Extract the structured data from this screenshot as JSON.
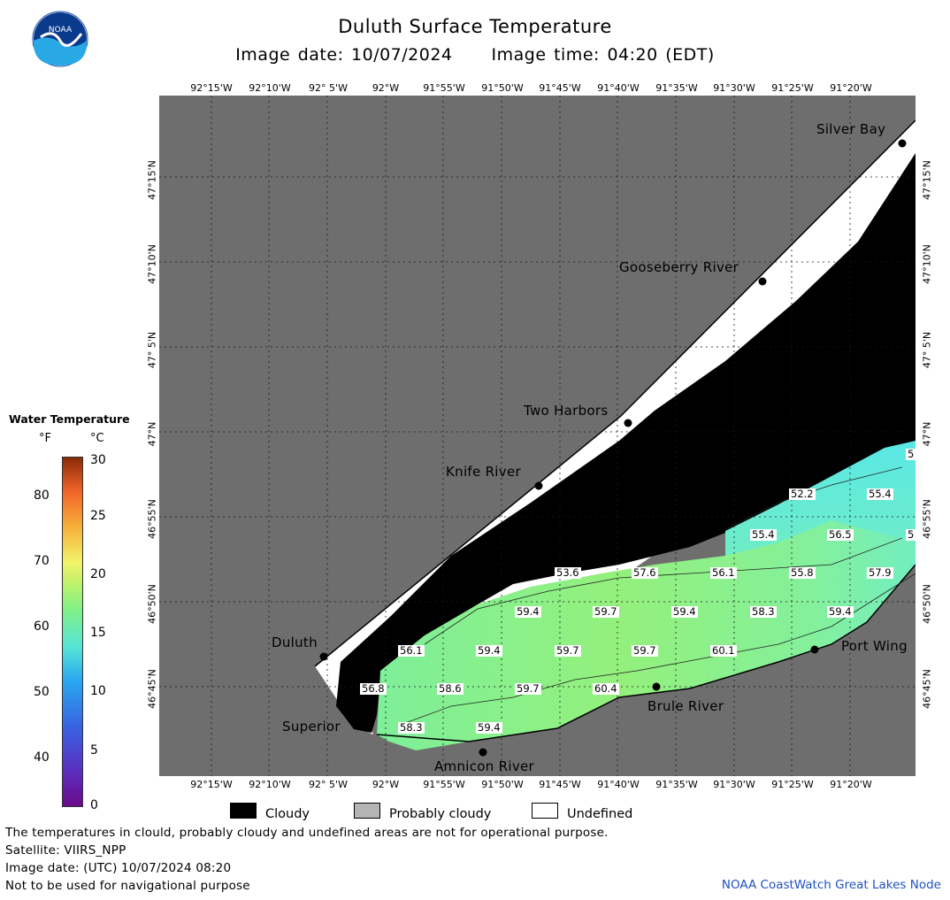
{
  "header": {
    "title": "Duluth Surface Temperature",
    "image_date": "Image date: 10/07/2024",
    "image_time": "Image time: 04:20 (EDT)"
  },
  "logo": {
    "text": "NOAA",
    "icon": "noaa-logo-icon"
  },
  "map": {
    "lon_labels": [
      "92°15'W",
      "92°10'W",
      "92° 5'W",
      "92°W",
      "91°55'W",
      "91°50'W",
      "91°45'W",
      "91°40'W",
      "91°35'W",
      "91°30'W",
      "91°25'W",
      "91°20'W"
    ],
    "lat_labels": [
      "47°15'N",
      "47°10'N",
      "47° 5'N",
      "47°N",
      "46°55'N",
      "46°50'N",
      "46°45'N"
    ],
    "places": [
      {
        "name": "Silver Bay"
      },
      {
        "name": "Gooseberry River"
      },
      {
        "name": "Two Harbors"
      },
      {
        "name": "Knife River"
      },
      {
        "name": "Duluth"
      },
      {
        "name": "Superior"
      },
      {
        "name": "Amnicon River"
      },
      {
        "name": "Brule River"
      },
      {
        "name": "Port Wing"
      }
    ],
    "temps": [
      "52.2",
      "55.4",
      "55.4",
      "56.5",
      "5",
      "5",
      "53.6",
      "57.6",
      "56.1",
      "55.8",
      "57.9",
      "59.4",
      "59.7",
      "59.4",
      "58.3",
      "59.4",
      "56.1",
      "59.4",
      "59.7",
      "59.7",
      "60.1",
      "56.8",
      "58.6",
      "59.7",
      "60.4",
      "58.3",
      "59.4"
    ],
    "colors": {
      "land": "#6e6e6e",
      "cloud": "#000000",
      "undefined": "#ffffff",
      "water_warm": "#8cf07a",
      "water_cool": "#6ef0c0"
    }
  },
  "legend": {
    "title": "Water Temperature",
    "unit_f": "°F",
    "unit_c": "°C",
    "f_ticks": [
      "80",
      "70",
      "60",
      "50",
      "40"
    ],
    "c_ticks": [
      "30",
      "25",
      "20",
      "15",
      "10",
      "5",
      "0"
    ],
    "keys": [
      {
        "label": "Cloudy",
        "color": "#000000"
      },
      {
        "label": "Probably cloudy",
        "color": "#b4b4b4"
      },
      {
        "label": "Undefined",
        "color": "#ffffff"
      }
    ]
  },
  "footer": {
    "note1": "The temperatures in clould, probably cloudy and undefined areas are not for operational purpose.",
    "note2": "Satellite: VIIRS_NPP",
    "note3": "Image date: (UTC) 10/07/2024  08:20",
    "note4": "Not to be used for navigational purpose",
    "credit": "NOAA CoastWatch Great Lakes Node"
  }
}
